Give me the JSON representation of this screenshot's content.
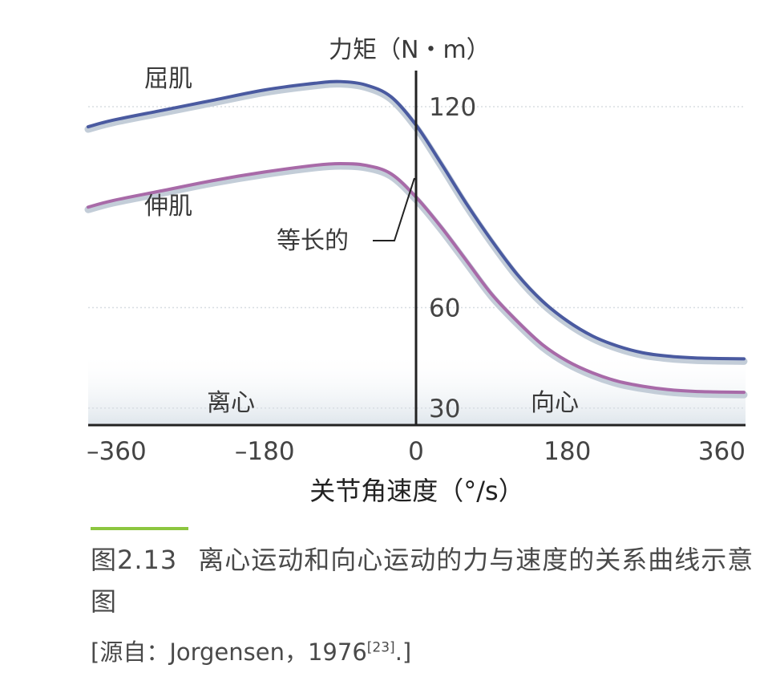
{
  "chart_data": {
    "type": "line",
    "ylabel": "力矩（N・m）",
    "xlabel": "关节角速度（°/s）",
    "xlim": [
      -390,
      390
    ],
    "x_ticks": [
      "–360",
      "–180",
      "0",
      "180",
      "360"
    ],
    "x_tick_values": [
      -360,
      -180,
      0,
      180,
      360
    ],
    "y_ticks": [
      "120",
      "60",
      "30"
    ],
    "y_tick_values": [
      120,
      60,
      30
    ],
    "grid": true,
    "series": [
      {
        "name": "屈肌",
        "color": "#4a5aa0",
        "x": [
          -390,
          -360,
          -300,
          -240,
          -180,
          -120,
          -90,
          -60,
          -30,
          0,
          30,
          60,
          90,
          120,
          150,
          180,
          210,
          240,
          270,
          300,
          330,
          360,
          390
        ],
        "y": [
          114,
          116,
          119,
          122,
          125,
          127,
          127.5,
          126.5,
          123,
          114.5,
          103,
          91,
          80,
          70,
          62,
          56,
          51.5,
          48.5,
          46.5,
          45.5,
          45,
          44.8,
          44.7
        ]
      },
      {
        "name": "伸肌",
        "color": "#a86aa8",
        "x": [
          -390,
          -360,
          -300,
          -240,
          -180,
          -120,
          -90,
          -60,
          -30,
          0,
          30,
          60,
          90,
          120,
          150,
          180,
          210,
          240,
          270,
          300,
          330,
          360,
          390
        ],
        "y": [
          90,
          92,
          95,
          98,
          100.5,
          102.5,
          103,
          102.5,
          100,
          93,
          84,
          74,
          64,
          56,
          49,
          44,
          40.5,
          38,
          36.5,
          35.5,
          35,
          34.8,
          34.7
        ]
      }
    ],
    "annotations": {
      "isometric": "等长的",
      "eccentric": "离心",
      "concentric": "向心"
    }
  },
  "caption": {
    "figure_no": "图2.13",
    "title": "离心运动和向心运动的力与速度的关系曲线示意图"
  },
  "source": {
    "text": "[源自：Jorgensen，1976",
    "ref": "[23]",
    "end": ".]"
  }
}
